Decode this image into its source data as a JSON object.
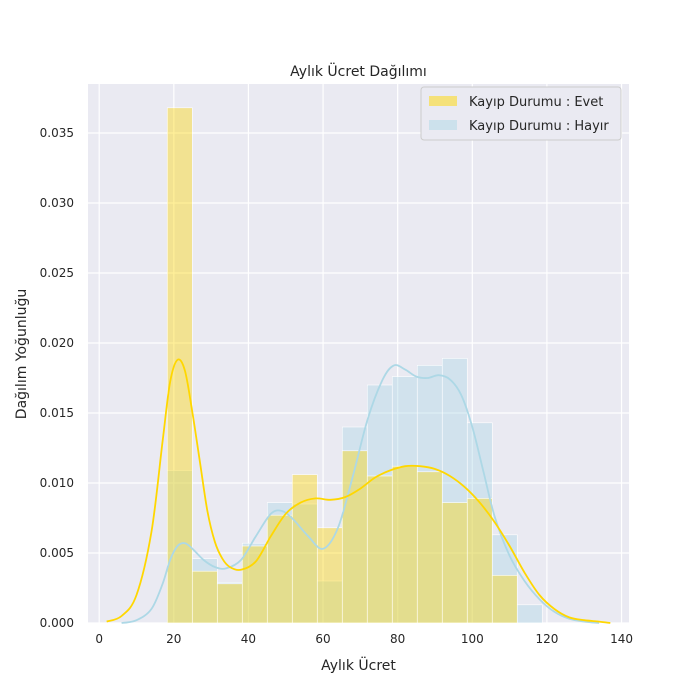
{
  "chart_data": {
    "type": "histogram",
    "title": "Aylık Ücret Dağılımı",
    "xlabel": "Aylık Ücret",
    "ylabel": "Dağılım Yoğunluğu",
    "xlim": [
      -3,
      142
    ],
    "ylim": [
      0,
      0.0385
    ],
    "xticks": [
      0,
      20,
      40,
      60,
      80,
      100,
      120,
      140
    ],
    "yticks": [
      0.0,
      0.005,
      0.01,
      0.015,
      0.02,
      0.025,
      0.03,
      0.035
    ],
    "ytick_labels": [
      "0.000",
      "0.005",
      "0.010",
      "0.015",
      "0.020",
      "0.025",
      "0.030",
      "0.035"
    ],
    "grid": true,
    "legend_position": "top-right",
    "background": "#eaeaf2",
    "bin_edges": [
      18.25,
      24.95,
      31.65,
      38.35,
      45.05,
      51.75,
      58.45,
      65.15,
      71.85,
      78.55,
      85.25,
      91.95,
      98.65,
      105.35,
      112.05,
      118.75
    ],
    "series": [
      {
        "name": "Kayıp Durumu : Evet",
        "color": "#ffd700",
        "bin_densities": [
          0.0368,
          0.0037,
          0.0028,
          0.0055,
          0.0077,
          0.0106,
          0.0068,
          0.0123,
          0.0105,
          0.0112,
          0.0108,
          0.0086,
          0.0089,
          0.0034,
          0.0
        ],
        "kde": {
          "x": [
            2,
            6,
            10,
            14,
            17,
            19,
            21,
            23,
            25,
            27,
            29,
            31,
            33,
            35,
            38,
            42,
            46,
            50,
            54,
            58,
            62,
            66,
            70,
            74,
            78,
            82,
            86,
            90,
            94,
            98,
            102,
            106,
            110,
            114,
            118,
            122,
            126,
            130,
            134,
            137
          ],
          "y": [
            0.0001,
            0.0005,
            0.002,
            0.0065,
            0.013,
            0.0172,
            0.0188,
            0.018,
            0.015,
            0.0115,
            0.008,
            0.0058,
            0.0046,
            0.004,
            0.0038,
            0.0044,
            0.0062,
            0.0078,
            0.0086,
            0.0089,
            0.0088,
            0.009,
            0.0096,
            0.0104,
            0.0109,
            0.0112,
            0.0112,
            0.011,
            0.0105,
            0.0097,
            0.0086,
            0.0072,
            0.0055,
            0.0036,
            0.002,
            0.001,
            0.0004,
            0.0002,
            0.0001,
            0.0
          ]
        }
      },
      {
        "name": "Kayıp Durumu : Hayır",
        "color": "#add8e6",
        "bin_densities": [
          0.0109,
          0.0046,
          0.0029,
          0.0057,
          0.0086,
          0.0085,
          0.003,
          0.014,
          0.017,
          0.0176,
          0.0184,
          0.0189,
          0.0143,
          0.0063,
          0.0013
        ],
        "kde": {
          "x": [
            6,
            10,
            14,
            17,
            19,
            21,
            23,
            25,
            28,
            31,
            34,
            38,
            42,
            46,
            49,
            52,
            56,
            60,
            64,
            68,
            72,
            76,
            79,
            82,
            85,
            88,
            91,
            94,
            97,
            100,
            103,
            106,
            110,
            114,
            118,
            122,
            126,
            130,
            134
          ],
          "y": [
            0.0,
            0.0002,
            0.001,
            0.0028,
            0.0045,
            0.0055,
            0.0057,
            0.0053,
            0.0045,
            0.004,
            0.0039,
            0.0045,
            0.0062,
            0.0078,
            0.008,
            0.0074,
            0.0062,
            0.0053,
            0.0068,
            0.0105,
            0.0146,
            0.0174,
            0.0184,
            0.0181,
            0.0176,
            0.0175,
            0.0177,
            0.0174,
            0.0163,
            0.014,
            0.0108,
            0.0076,
            0.0048,
            0.003,
            0.0017,
            0.0008,
            0.0003,
            0.0001,
            0.0
          ]
        }
      }
    ]
  }
}
